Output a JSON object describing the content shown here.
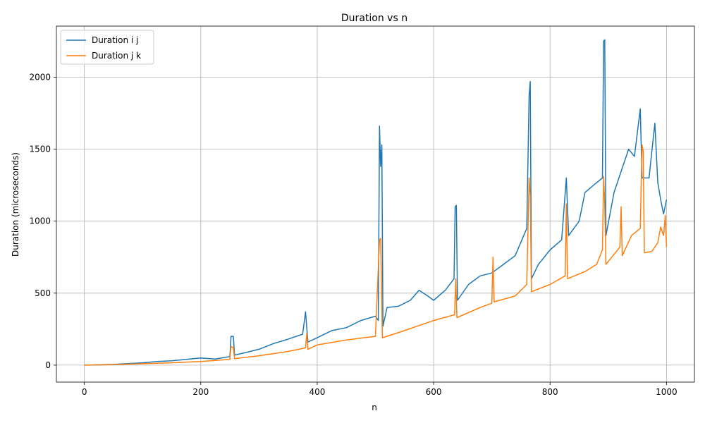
{
  "chart_data": {
    "type": "line",
    "title": "Duration vs n",
    "xlabel": "n",
    "ylabel": "Duration (microseconds)",
    "xlim": [
      -48,
      1048
    ],
    "ylim": [
      -118,
      2355
    ],
    "xticks": [
      0,
      200,
      400,
      600,
      800,
      1000
    ],
    "yticks": [
      0,
      500,
      1000,
      1500,
      2000
    ],
    "grid": true,
    "legend_position": "top-left",
    "series": [
      {
        "name": "Duration i j",
        "color": "#1f77b4",
        "points": [
          [
            0,
            0
          ],
          [
            50,
            5
          ],
          [
            100,
            16
          ],
          [
            125,
            25
          ],
          [
            150,
            30
          ],
          [
            175,
            40
          ],
          [
            200,
            50
          ],
          [
            225,
            42
          ],
          [
            250,
            60
          ],
          [
            252,
            200
          ],
          [
            256,
            200
          ],
          [
            258,
            70
          ],
          [
            275,
            85
          ],
          [
            300,
            110
          ],
          [
            325,
            150
          ],
          [
            350,
            180
          ],
          [
            375,
            215
          ],
          [
            380,
            370
          ],
          [
            384,
            160
          ],
          [
            400,
            190
          ],
          [
            425,
            240
          ],
          [
            450,
            260
          ],
          [
            475,
            310
          ],
          [
            500,
            340
          ],
          [
            505,
            310
          ],
          [
            507,
            1660
          ],
          [
            509,
            1380
          ],
          [
            511,
            1530
          ],
          [
            513,
            270
          ],
          [
            520,
            400
          ],
          [
            540,
            410
          ],
          [
            560,
            450
          ],
          [
            575,
            520
          ],
          [
            590,
            480
          ],
          [
            600,
            450
          ],
          [
            620,
            520
          ],
          [
            635,
            600
          ],
          [
            637,
            1100
          ],
          [
            639,
            1110
          ],
          [
            641,
            450
          ],
          [
            660,
            560
          ],
          [
            680,
            620
          ],
          [
            700,
            640
          ],
          [
            720,
            700
          ],
          [
            740,
            760
          ],
          [
            760,
            950
          ],
          [
            764,
            1870
          ],
          [
            766,
            1970
          ],
          [
            768,
            600
          ],
          [
            780,
            700
          ],
          [
            800,
            800
          ],
          [
            820,
            870
          ],
          [
            828,
            1300
          ],
          [
            832,
            900
          ],
          [
            850,
            1000
          ],
          [
            860,
            1200
          ],
          [
            875,
            1250
          ],
          [
            890,
            1300
          ],
          [
            892,
            2250
          ],
          [
            894,
            2260
          ],
          [
            896,
            900
          ],
          [
            910,
            1200
          ],
          [
            925,
            1380
          ],
          [
            935,
            1500
          ],
          [
            945,
            1450
          ],
          [
            955,
            1780
          ],
          [
            958,
            1300
          ],
          [
            970,
            1300
          ],
          [
            980,
            1680
          ],
          [
            985,
            1270
          ],
          [
            990,
            1150
          ],
          [
            995,
            1050
          ],
          [
            1000,
            1150
          ]
        ]
      },
      {
        "name": "Duration j k",
        "color": "#ff7f0e",
        "points": [
          [
            0,
            0
          ],
          [
            50,
            3
          ],
          [
            100,
            10
          ],
          [
            150,
            16
          ],
          [
            200,
            25
          ],
          [
            250,
            40
          ],
          [
            252,
            130
          ],
          [
            256,
            120
          ],
          [
            258,
            45
          ],
          [
            300,
            65
          ],
          [
            350,
            95
          ],
          [
            380,
            120
          ],
          [
            382,
            220
          ],
          [
            384,
            110
          ],
          [
            400,
            140
          ],
          [
            450,
            175
          ],
          [
            500,
            200
          ],
          [
            507,
            870
          ],
          [
            509,
            880
          ],
          [
            512,
            190
          ],
          [
            550,
            240
          ],
          [
            600,
            310
          ],
          [
            636,
            350
          ],
          [
            638,
            600
          ],
          [
            640,
            330
          ],
          [
            680,
            400
          ],
          [
            700,
            430
          ],
          [
            702,
            750
          ],
          [
            704,
            440
          ],
          [
            740,
            480
          ],
          [
            760,
            560
          ],
          [
            764,
            1300
          ],
          [
            766,
            1180
          ],
          [
            768,
            510
          ],
          [
            800,
            560
          ],
          [
            826,
            620
          ],
          [
            828,
            1120
          ],
          [
            830,
            600
          ],
          [
            860,
            650
          ],
          [
            880,
            700
          ],
          [
            890,
            800
          ],
          [
            892,
            1310
          ],
          [
            894,
            1120
          ],
          [
            896,
            700
          ],
          [
            920,
            820
          ],
          [
            922,
            1100
          ],
          [
            924,
            760
          ],
          [
            940,
            900
          ],
          [
            955,
            950
          ],
          [
            958,
            1530
          ],
          [
            960,
            1490
          ],
          [
            962,
            780
          ],
          [
            975,
            790
          ],
          [
            985,
            850
          ],
          [
            990,
            960
          ],
          [
            995,
            900
          ],
          [
            998,
            1040
          ],
          [
            1000,
            820
          ]
        ]
      }
    ]
  }
}
